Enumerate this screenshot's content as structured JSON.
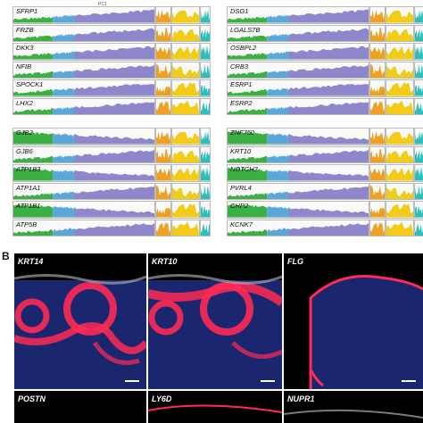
{
  "figure": {
    "top_axis_label": "PC1",
    "panel_b_label": "B",
    "left_genes_a": [
      "SFRP1",
      "FRZB",
      "DKK3",
      "NFIB",
      "SPOCK1",
      "LHX2"
    ],
    "left_genes_b": [
      "GJB2",
      "GJB6",
      "ATP1B3",
      "ATP1A1",
      "ATP1B1",
      "ATP5B"
    ],
    "right_genes_a": [
      "DSG1",
      "LGALS7B",
      "OSBPL2",
      "CRB3",
      "ESRP1",
      "ESRP2"
    ],
    "right_genes_b": [
      "ZNF750",
      "KRT10",
      "NOTCH3",
      "PVRL4",
      "CHP2",
      "KCNK7"
    ],
    "right_top_partial": "...",
    "images": [
      "KRT14",
      "KRT10",
      "FLG",
      "POSTN",
      "LY6D",
      "NUPR1"
    ]
  },
  "colors": {
    "green": "#3cb043",
    "blue": "#5aa8d8",
    "purple": "#8f87cc",
    "orange": "#f0a020",
    "yellow": "#f2cc18",
    "teal": "#2bbfbf",
    "red": "#ff2a55",
    "nuclei": "#2a3cc8"
  }
}
